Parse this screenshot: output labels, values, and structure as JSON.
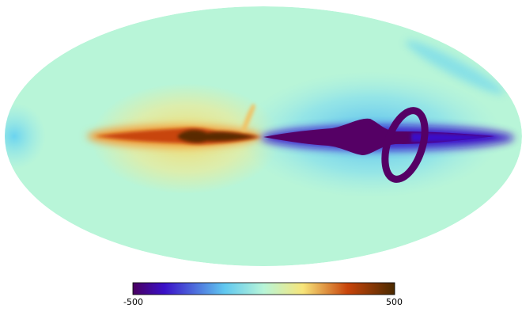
{
  "colorbar": {
    "min_label": "-500",
    "max_label": "500",
    "min_value": -500,
    "max_value": 500,
    "colormap": [
      "#4a0060",
      "#3a10c8",
      "#60c8f0",
      "#b8f5d8",
      "#f7e57a",
      "#c8440a",
      "#4a2a00"
    ]
  },
  "colors": {
    "background": "#b8f5d8",
    "negative": "#550065",
    "positive": "#5a2c00"
  }
}
